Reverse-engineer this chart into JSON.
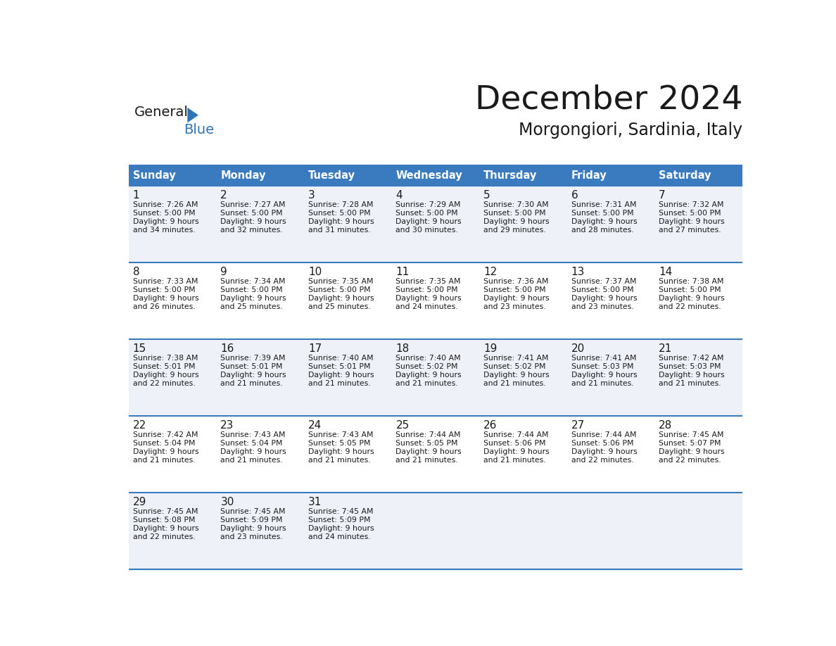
{
  "title": "December 2024",
  "subtitle": "Morgongiori, Sardinia, Italy",
  "header_color": "#3A7ABF",
  "header_text_color": "#FFFFFF",
  "row_bg_odd": "#EEF2F8",
  "row_bg_even": "#FFFFFF",
  "border_color": "#3A7ABF",
  "text_color": "#1a1a1a",
  "day_headers": [
    "Sunday",
    "Monday",
    "Tuesday",
    "Wednesday",
    "Thursday",
    "Friday",
    "Saturday"
  ],
  "weeks": [
    [
      {
        "day": "1",
        "sunrise": "7:26 AM",
        "sunset": "5:00 PM",
        "daylight_min": "34"
      },
      {
        "day": "2",
        "sunrise": "7:27 AM",
        "sunset": "5:00 PM",
        "daylight_min": "32"
      },
      {
        "day": "3",
        "sunrise": "7:28 AM",
        "sunset": "5:00 PM",
        "daylight_min": "31"
      },
      {
        "day": "4",
        "sunrise": "7:29 AM",
        "sunset": "5:00 PM",
        "daylight_min": "30"
      },
      {
        "day": "5",
        "sunrise": "7:30 AM",
        "sunset": "5:00 PM",
        "daylight_min": "29"
      },
      {
        "day": "6",
        "sunrise": "7:31 AM",
        "sunset": "5:00 PM",
        "daylight_min": "28"
      },
      {
        "day": "7",
        "sunrise": "7:32 AM",
        "sunset": "5:00 PM",
        "daylight_min": "27"
      }
    ],
    [
      {
        "day": "8",
        "sunrise": "7:33 AM",
        "sunset": "5:00 PM",
        "daylight_min": "26"
      },
      {
        "day": "9",
        "sunrise": "7:34 AM",
        "sunset": "5:00 PM",
        "daylight_min": "25"
      },
      {
        "day": "10",
        "sunrise": "7:35 AM",
        "sunset": "5:00 PM",
        "daylight_min": "25"
      },
      {
        "day": "11",
        "sunrise": "7:35 AM",
        "sunset": "5:00 PM",
        "daylight_min": "24"
      },
      {
        "day": "12",
        "sunrise": "7:36 AM",
        "sunset": "5:00 PM",
        "daylight_min": "23"
      },
      {
        "day": "13",
        "sunrise": "7:37 AM",
        "sunset": "5:00 PM",
        "daylight_min": "23"
      },
      {
        "day": "14",
        "sunrise": "7:38 AM",
        "sunset": "5:00 PM",
        "daylight_min": "22"
      }
    ],
    [
      {
        "day": "15",
        "sunrise": "7:38 AM",
        "sunset": "5:01 PM",
        "daylight_min": "22"
      },
      {
        "day": "16",
        "sunrise": "7:39 AM",
        "sunset": "5:01 PM",
        "daylight_min": "21"
      },
      {
        "day": "17",
        "sunrise": "7:40 AM",
        "sunset": "5:01 PM",
        "daylight_min": "21"
      },
      {
        "day": "18",
        "sunrise": "7:40 AM",
        "sunset": "5:02 PM",
        "daylight_min": "21"
      },
      {
        "day": "19",
        "sunrise": "7:41 AM",
        "sunset": "5:02 PM",
        "daylight_min": "21"
      },
      {
        "day": "20",
        "sunrise": "7:41 AM",
        "sunset": "5:03 PM",
        "daylight_min": "21"
      },
      {
        "day": "21",
        "sunrise": "7:42 AM",
        "sunset": "5:03 PM",
        "daylight_min": "21"
      }
    ],
    [
      {
        "day": "22",
        "sunrise": "7:42 AM",
        "sunset": "5:04 PM",
        "daylight_min": "21"
      },
      {
        "day": "23",
        "sunrise": "7:43 AM",
        "sunset": "5:04 PM",
        "daylight_min": "21"
      },
      {
        "day": "24",
        "sunrise": "7:43 AM",
        "sunset": "5:05 PM",
        "daylight_min": "21"
      },
      {
        "day": "25",
        "sunrise": "7:44 AM",
        "sunset": "5:05 PM",
        "daylight_min": "21"
      },
      {
        "day": "26",
        "sunrise": "7:44 AM",
        "sunset": "5:06 PM",
        "daylight_min": "21"
      },
      {
        "day": "27",
        "sunrise": "7:44 AM",
        "sunset": "5:06 PM",
        "daylight_min": "22"
      },
      {
        "day": "28",
        "sunrise": "7:45 AM",
        "sunset": "5:07 PM",
        "daylight_min": "22"
      }
    ],
    [
      {
        "day": "29",
        "sunrise": "7:45 AM",
        "sunset": "5:08 PM",
        "daylight_min": "22"
      },
      {
        "day": "30",
        "sunrise": "7:45 AM",
        "sunset": "5:09 PM",
        "daylight_min": "23"
      },
      {
        "day": "31",
        "sunrise": "7:45 AM",
        "sunset": "5:09 PM",
        "daylight_min": "24"
      },
      null,
      null,
      null,
      null
    ]
  ]
}
